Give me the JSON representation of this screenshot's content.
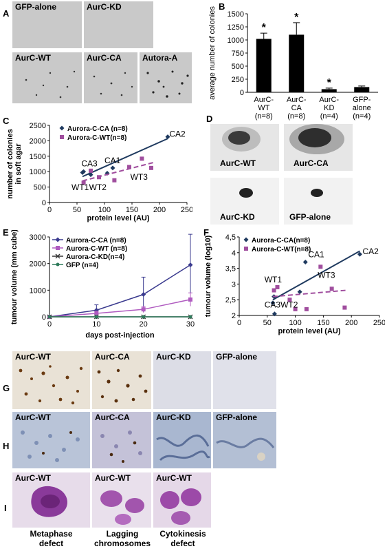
{
  "panels": {
    "A": "A",
    "B": "B",
    "C": "C",
    "D": "D",
    "E": "E",
    "F": "F",
    "G": "G",
    "H": "H",
    "I": "I"
  },
  "panelA": {
    "tiles": [
      "GFP-alone",
      "AurC-KD",
      "AurC-WT",
      "AurC-CA",
      "Autora-A"
    ]
  },
  "panelD": {
    "tiles": [
      "AurC-WT",
      "AurC-CA",
      "AurC-KD",
      "GFP-alone"
    ]
  },
  "panelG": {
    "tiles": [
      "AurC-WT",
      "AurC-CA",
      "AurC-KD",
      "GFP-alone"
    ]
  },
  "panelH": {
    "tiles": [
      "AurC-WT",
      "AurC-CA",
      "AurC-KD",
      "GFP-alone"
    ]
  },
  "panelI": {
    "tiles": [
      "AurC-WT",
      "AurC-WT",
      "AurC-WT"
    ],
    "captions": [
      [
        "Metaphase",
        "defect"
      ],
      [
        "Lagging",
        "chromosomes"
      ],
      [
        "Cytokinesis",
        "defect"
      ]
    ]
  },
  "chart_data": [
    {
      "id": "B",
      "type": "bar",
      "categories": [
        [
          "AurC-",
          "WT",
          "(n=8)"
        ],
        [
          "AurC-",
          "CA",
          "(n=8)"
        ],
        [
          "AurC-",
          "KD",
          "(n=4)"
        ],
        [
          "GFP-",
          "alone",
          "(n=4)"
        ]
      ],
      "values": [
        1020,
        1100,
        60,
        100
      ],
      "errors": [
        110,
        230,
        20,
        20
      ],
      "significance": [
        "*",
        "*",
        "*",
        ""
      ],
      "ylabel": "average number of colonies",
      "ylim": [
        0,
        1500
      ],
      "yticks": [
        "0",
        "250",
        "500",
        "750",
        "1000",
        "1250",
        "1500"
      ],
      "colors": {
        "bar": "#000000"
      }
    },
    {
      "id": "C",
      "type": "scatter",
      "xlabel": "protein level (AU)",
      "ylabel": [
        "number of colonies",
        "in soft agar"
      ],
      "xlim": [
        0,
        250
      ],
      "ylim": [
        0,
        2500
      ],
      "xticks": [
        "0",
        "50",
        "100",
        "150",
        "200",
        "250"
      ],
      "yticks": [
        "0",
        "500",
        "1000",
        "1500",
        "2000",
        "2500"
      ],
      "series": [
        {
          "name": "Aurora-C-CA (n=8)",
          "color": "#1f3a5f",
          "marker": "diamond",
          "points": [
            [
              60,
              970
            ],
            [
              62,
              1000
            ],
            [
              75,
              900
            ],
            [
              105,
              950
            ],
            [
              115,
              1120
            ],
            [
              215,
              2130
            ]
          ],
          "trend": [
            [
              60,
              840
            ],
            [
              215,
              2070
            ]
          ],
          "dash": false
        },
        {
          "name": "Aurora-C-WT(n=8)",
          "color": "#a04e9e",
          "marker": "square",
          "points": [
            [
              62,
              640
            ],
            [
              75,
              1030
            ],
            [
              90,
              820
            ],
            [
              118,
              720
            ],
            [
              145,
              1150
            ],
            [
              168,
              1420
            ],
            [
              185,
              1120
            ]
          ],
          "trend": [
            [
              60,
              700
            ],
            [
              190,
              1300
            ]
          ],
          "dash": true
        }
      ],
      "annotations": [
        {
          "text": "CA2",
          "x": 218,
          "y": 2130
        },
        {
          "text": "CA1",
          "x": 100,
          "y": 1270
        },
        {
          "text": "CA3",
          "x": 58,
          "y": 1170
        },
        {
          "text": "WT3",
          "x": 147,
          "y": 740
        },
        {
          "text": "WT1",
          "x": 40,
          "y": 400
        },
        {
          "text": "WT2",
          "x": 72,
          "y": 400
        }
      ]
    },
    {
      "id": "E",
      "type": "line",
      "xlabel": "days post-injection",
      "ylabel": "tumour volume (mm cube)",
      "xlim": [
        0,
        30
      ],
      "ylim": [
        0,
        3000
      ],
      "xticks": [
        "0",
        "10",
        "20",
        "30"
      ],
      "yticks": [
        "0",
        "1000",
        "2000",
        "3000"
      ],
      "x": [
        0,
        10,
        20,
        30
      ],
      "series": [
        {
          "name": "Aurora-C-CA (n=8)",
          "color": "#3b3b8f",
          "marker": "diamond",
          "values": [
            0,
            250,
            840,
            1950
          ],
          "errors": [
            0,
            200,
            650,
            1150
          ]
        },
        {
          "name": "Aurora-C-WT (n=8)",
          "color": "#b05cc0",
          "marker": "square",
          "values": [
            0,
            130,
            280,
            650
          ],
          "errors": [
            0,
            80,
            120,
            250
          ]
        },
        {
          "name": "Aurora-C-KD(n=4)",
          "color": "#333333",
          "marker": "x",
          "values": [
            0,
            0,
            0,
            0
          ],
          "errors": [
            0,
            0,
            0,
            0
          ]
        },
        {
          "name": "GFP (n=4)",
          "color": "#2e7a5a",
          "marker": "dot",
          "values": [
            0,
            0,
            0,
            0
          ],
          "errors": [
            0,
            0,
            0,
            0
          ]
        }
      ]
    },
    {
      "id": "F",
      "type": "scatter",
      "xlabel": "protein level (AU)",
      "ylabel": "tumour volume (log10)",
      "xlim": [
        0,
        250
      ],
      "ylim": [
        2,
        4.5
      ],
      "xticks": [
        "0",
        "50",
        "100",
        "150",
        "200",
        "250"
      ],
      "yticks": [
        "2",
        "2,5",
        "3",
        "3,5",
        "4",
        "4,5"
      ],
      "series": [
        {
          "name": "Aurora-C-CA(n=8)",
          "color": "#1f3a5f",
          "marker": "diamond",
          "points": [
            [
              60,
              2.4
            ],
            [
              62,
              2.6
            ],
            [
              63,
              2.05
            ],
            [
              108,
              2.75
            ],
            [
              118,
              3.7
            ],
            [
              215,
              3.95
            ]
          ],
          "trend": [
            [
              60,
              2.5
            ],
            [
              215,
              4.05
            ]
          ],
          "dash": false
        },
        {
          "name": "Aurora-C-WT(n=8)",
          "color": "#a04e9e",
          "marker": "square",
          "points": [
            [
              62,
              2.8
            ],
            [
              68,
              2.9
            ],
            [
              90,
              2.5
            ],
            [
              100,
              2.2
            ],
            [
              120,
              2.2
            ],
            [
              145,
              3.55
            ],
            [
              165,
              2.85
            ],
            [
              188,
              2.25
            ]
          ],
          "trend": [
            [
              60,
              2.6
            ],
            [
              190,
              2.8
            ]
          ],
          "dash": true
        }
      ],
      "annotations": [
        {
          "text": "CA2",
          "x": 220,
          "y": 3.95
        },
        {
          "text": "CA1",
          "x": 123,
          "y": 3.85
        },
        {
          "text": "WT1",
          "x": 45,
          "y": 3.05
        },
        {
          "text": "WT3",
          "x": 140,
          "y": 3.2
        },
        {
          "text": "CA3WT2",
          "x": 45,
          "y": 2.25
        }
      ]
    }
  ]
}
